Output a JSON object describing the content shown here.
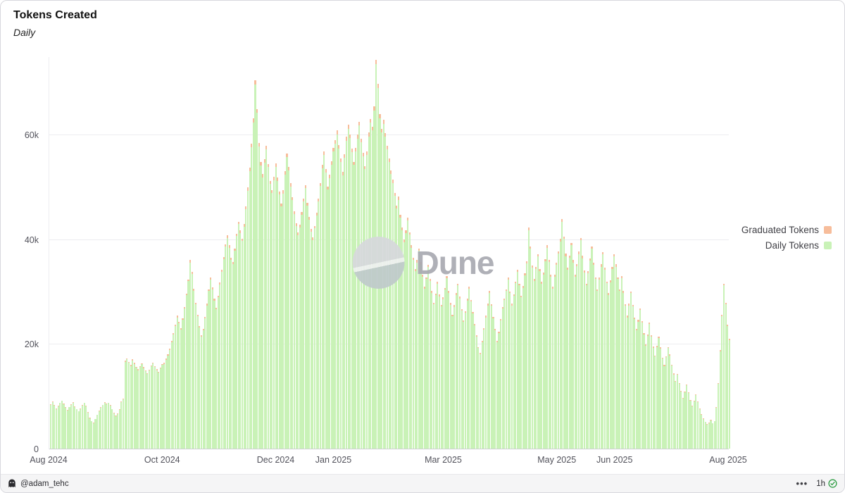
{
  "header": {
    "title": "Tokens Created",
    "subtitle": "Daily"
  },
  "watermark": {
    "text": "Dune"
  },
  "legend": [
    {
      "label": "Graduated Tokens",
      "color": "#f7bd9b"
    },
    {
      "label": "Daily Tokens",
      "color": "#c9f2b7"
    }
  ],
  "footer": {
    "author": "@adam_tehc",
    "menu_dots": "•••",
    "updated": "1h"
  },
  "chart_data": {
    "type": "bar",
    "stacked": true,
    "title": "Tokens Created",
    "granularity": "Daily",
    "x_range": [
      "Aug 2024",
      "Aug 2025"
    ],
    "x_ticks": [
      {
        "label": "Aug 2024",
        "pos": 0
      },
      {
        "label": "Oct 2024",
        "pos": 0.1671
      },
      {
        "label": "Dec 2024",
        "pos": 0.3342
      },
      {
        "label": "Jan 2025",
        "pos": 0.4192
      },
      {
        "label": "Mar 2025",
        "pos": 0.5808
      },
      {
        "label": "May 2025",
        "pos": 0.7479
      },
      {
        "label": "Jun 2025",
        "pos": 0.8329
      },
      {
        "label": "Aug 2025",
        "pos": 1
      }
    ],
    "y_ticks": [
      {
        "label": "0",
        "value_k": 0
      },
      {
        "label": "20k",
        "value_k": 20
      },
      {
        "label": "40k",
        "value_k": 40
      },
      {
        "label": "60k",
        "value_k": 60
      }
    ],
    "ylim_k": [
      0,
      75
    ],
    "unit": "tokens created per day (thousands)",
    "series": [
      {
        "name": "Daily Tokens",
        "color": "#c9f2b7",
        "values_k": [
          8.4,
          8.9,
          8.2,
          7.6,
          8.1,
          8.7,
          9.1,
          8.5,
          7.8,
          7.3,
          7.9,
          8.4,
          8.8,
          8.0,
          7.5,
          7.1,
          7.6,
          8.2,
          8.7,
          8.1,
          6.9,
          5.8,
          5.2,
          4.9,
          5.6,
          6.4,
          7.2,
          7.8,
          8.3,
          8.8,
          8.5,
          8.7,
          8.2,
          7.5,
          6.8,
          6.2,
          6.6,
          7.4,
          8.9,
          9.4,
          16.6,
          17.1,
          16.4,
          15.8,
          16.9,
          16.2,
          15.5,
          15.0,
          15.6,
          16.1,
          15.4,
          14.8,
          14.3,
          14.9,
          15.7,
          16.3,
          15.6,
          15.0,
          14.5,
          15.3,
          16.0,
          16.2,
          17.0,
          17.8,
          18.9,
          20.3,
          21.8,
          23.4,
          25.1,
          24.0,
          22.7,
          24.6,
          26.8,
          29.3,
          32.0,
          35.6,
          33.4,
          30.2,
          27.6,
          25.3,
          23.1,
          21.4,
          22.6,
          24.9,
          27.4,
          30.1,
          32.3,
          30.5,
          28.3,
          26.6,
          28.9,
          31.4,
          33.8,
          36.2,
          38.6,
          40.3,
          38.4,
          36.1,
          35.3,
          37.8,
          40.6,
          42.9,
          41.2,
          39.7,
          42.4,
          45.8,
          49.3,
          53.1,
          57.6,
          62.4,
          69.6,
          64.2,
          57.8,
          54.1,
          51.9,
          54.7,
          57.2,
          53.8,
          50.6,
          48.9,
          51.3,
          53.9,
          51.2,
          48.6,
          46.3,
          48.8,
          52.4,
          55.7,
          53.2,
          50.1,
          47.5,
          44.9,
          42.6,
          40.8,
          42.3,
          44.7,
          47.2,
          49.8,
          46.4,
          43.8,
          41.5,
          39.9,
          42.1,
          44.6,
          47.3,
          50.2,
          53.6,
          56.1,
          52.8,
          49.5,
          51.7,
          54.3,
          56.8,
          58.3,
          60.1,
          57.4,
          54.8,
          52.3,
          55.6,
          58.9,
          61.2,
          59.4,
          56.7,
          54.2,
          56.8,
          59.3,
          61.8,
          58.6,
          55.9,
          53.4,
          56.2,
          59.7,
          62.3,
          60.8,
          64.7,
          73.5,
          68.9,
          63.2,
          60.4,
          62.1,
          59.6,
          57.2,
          54.8,
          52.5,
          50.8,
          48.3,
          45.9,
          47.6,
          44.2,
          41.8,
          39.5,
          41.2,
          43.6,
          40.9,
          38.4,
          36.1,
          33.9,
          35.6,
          37.8,
          35.2,
          32.8,
          30.6,
          32.4,
          34.7,
          32.1,
          29.8,
          27.6,
          29.3,
          31.5,
          29.1,
          27.2,
          28.6,
          30.4,
          32.6,
          29.8,
          27.5,
          25.3,
          27.1,
          29.4,
          31.2,
          28.7,
          26.4,
          24.2,
          26.0,
          28.3,
          30.6,
          28.1,
          25.8,
          23.6,
          21.4,
          19.2,
          18.1,
          20.3,
          22.7,
          25.1,
          27.4,
          29.8,
          27.3,
          24.9,
          22.6,
          20.4,
          22.1,
          24.5,
          26.8,
          28.4,
          30.1,
          32.3,
          29.7,
          27.4,
          29.2,
          31.6,
          33.8,
          31.2,
          28.9,
          30.7,
          33.1,
          35.4,
          41.8,
          38.2,
          34.6,
          32.1,
          34.3,
          36.7,
          33.9,
          31.5,
          33.2,
          35.8,
          38.4,
          35.7,
          32.9,
          30.6,
          32.8,
          35.1,
          37.3,
          39.6,
          43.4,
          40.1,
          36.8,
          34.2,
          36.5,
          38.9,
          35.6,
          32.8,
          34.9,
          37.2,
          39.8,
          36.4,
          33.7,
          31.2,
          33.5,
          35.9,
          38.2,
          35.1,
          32.4,
          30.1,
          32.3,
          34.8,
          37.1,
          34.2,
          31.6,
          29.4,
          31.8,
          34.3,
          36.7,
          34.8,
          32.4,
          30.1,
          32.6,
          29.8,
          27.3,
          25.1,
          27.4,
          29.7,
          27.2,
          24.8,
          22.6,
          24.3,
          26.5,
          24.1,
          21.8,
          19.7,
          21.5,
          23.8,
          21.4,
          19.3,
          17.6,
          19.4,
          21.2,
          19.1,
          17.2,
          15.8,
          17.5,
          19.2,
          17.8,
          15.9,
          14.2,
          12.8,
          14.1,
          12.4,
          10.9,
          9.6,
          10.8,
          12.1,
          10.6,
          9.2,
          8.1,
          9.0,
          10.2,
          8.9,
          7.6,
          6.5,
          5.7,
          5.1,
          4.6,
          4.9,
          5.4,
          4.8,
          5.2,
          7.8,
          12.4,
          18.6,
          25.3,
          31.2,
          27.6,
          23.4,
          20.8
        ]
      },
      {
        "name": "Graduated Tokens",
        "color": "#f7bd9b",
        "fraction_of_daily": 0.012,
        "note": "thin caps stacked on top of each daily bar, approx 1-2% of the daily total"
      }
    ]
  }
}
